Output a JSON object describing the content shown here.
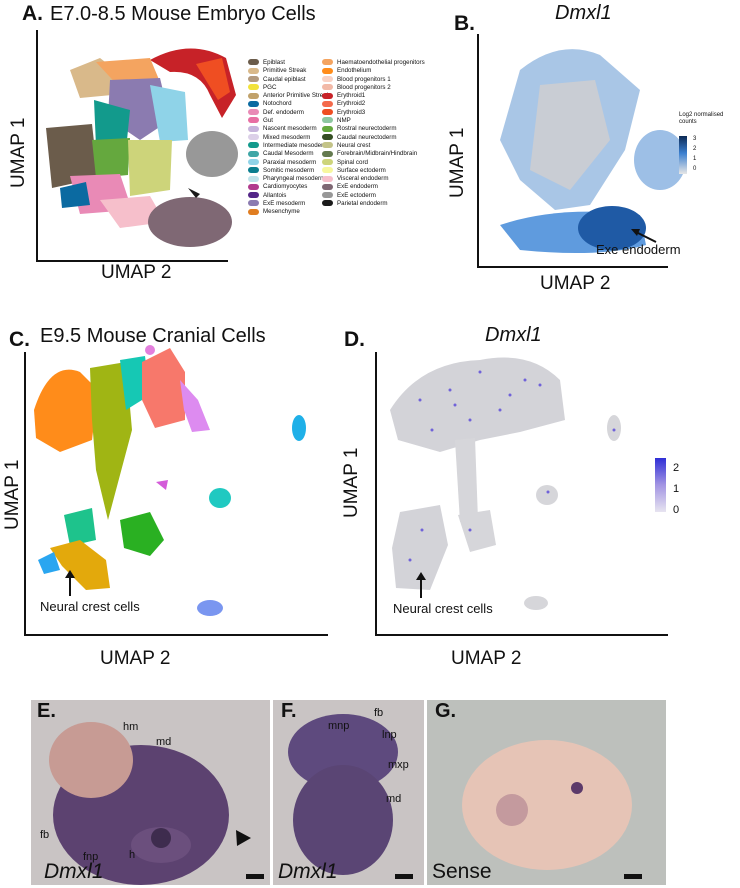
{
  "panels": {
    "A": {
      "letter": "A.",
      "title": "E7.0-8.5 Mouse Embryo Cells",
      "xlabel": "UMAP 2",
      "ylabel": "UMAP 1"
    },
    "B": {
      "letter": "B.",
      "gene": "Dmxl1",
      "xlabel": "UMAP 2",
      "ylabel": "UMAP 1",
      "annotation": "Exe endoderm",
      "colorbar_title": "Log2 normalised counts",
      "ticks": [
        "3",
        "2",
        "1",
        "0"
      ]
    },
    "C": {
      "letter": "C.",
      "title": "E9.5 Mouse Cranial Cells",
      "xlabel": "UMAP 2",
      "ylabel": "UMAP 1",
      "annotation": "Neural crest cells"
    },
    "D": {
      "letter": "D.",
      "gene": "Dmxl1",
      "xlabel": "UMAP 2",
      "ylabel": "UMAP 1",
      "annotation": "Neural crest cells",
      "ticks": [
        "2",
        "1",
        "0"
      ]
    },
    "E": {
      "letter": "E.",
      "gene": "Dmxl1",
      "labels": {
        "hm": "hm",
        "md": "md",
        "fb": "fb",
        "fnp": "fnp",
        "h": "h"
      }
    },
    "F": {
      "letter": "F.",
      "gene": "Dmxl1",
      "labels": {
        "fb": "fb",
        "mnp": "mnp",
        "lnp": "lnp",
        "mxp": "mxp",
        "md": "md"
      }
    },
    "G": {
      "letter": "G.",
      "gene": "Sense"
    }
  },
  "legend": {
    "col1": [
      {
        "label": "Epiblast",
        "color": "#6b5c4b"
      },
      {
        "label": "Primitive Streak",
        "color": "#d9b98a"
      },
      {
        "label": "Caudal epiblast",
        "color": "#b39a7e"
      },
      {
        "label": "PGC",
        "color": "#f2e23a"
      },
      {
        "label": "Anterior Primitive Streak",
        "color": "#c1a26b"
      },
      {
        "label": "Notochord",
        "color": "#0b6aa1"
      },
      {
        "label": "Def. endoderm",
        "color": "#e98ab6"
      },
      {
        "label": "Gut",
        "color": "#e86fa3"
      },
      {
        "label": "Nascent mesoderm",
        "color": "#c7b5dc"
      },
      {
        "label": "Mixed mesoderm",
        "color": "#dcd0e8"
      },
      {
        "label": "Intermediate mesoderm",
        "color": "#129a8c"
      },
      {
        "label": "Caudal Mesoderm",
        "color": "#3fa6a6"
      },
      {
        "label": "Paraxial mesoderm",
        "color": "#8fd3e8"
      },
      {
        "label": "Somitic mesoderm",
        "color": "#0a7e8f"
      },
      {
        "label": "Pharyngeal mesoderm",
        "color": "#bfe3ea"
      },
      {
        "label": "Cardiomyocytes",
        "color": "#b13b8d"
      },
      {
        "label": "Allantois",
        "color": "#542788"
      },
      {
        "label": "ExE mesoderm",
        "color": "#8b7bb0"
      },
      {
        "label": "Mesenchyme",
        "color": "#e07d21"
      }
    ],
    "col2": [
      {
        "label": "Haematoendothelial progenitors",
        "color": "#f4a460"
      },
      {
        "label": "Endothelium",
        "color": "#ff8c1a"
      },
      {
        "label": "Blood progenitors 1",
        "color": "#f9d2c5"
      },
      {
        "label": "Blood progenitors 2",
        "color": "#f2b9a7"
      },
      {
        "label": "Erythroid1",
        "color": "#c72228"
      },
      {
        "label": "Erythroid2",
        "color": "#f46a4c"
      },
      {
        "label": "Erythroid3",
        "color": "#ef4e22"
      },
      {
        "label": "NMP",
        "color": "#8dc7a0"
      },
      {
        "label": "Rostral neurectoderm",
        "color": "#65a83e"
      },
      {
        "label": "Caudal neurectoderm",
        "color": "#354e23"
      },
      {
        "label": "Neural crest",
        "color": "#c3c388"
      },
      {
        "label": "Forebrain/Midbrain/Hindbrain",
        "color": "#647a4f"
      },
      {
        "label": "Spinal cord",
        "color": "#cdd47a"
      },
      {
        "label": "Surface ectoderm",
        "color": "#f7f79e"
      },
      {
        "label": "Visceral endoderm",
        "color": "#f6bfcb"
      },
      {
        "label": "ExE endoderm",
        "color": "#7f6874"
      },
      {
        "label": "ExE ectoderm",
        "color": "#989898"
      },
      {
        "label": "Parietal endoderm",
        "color": "#1a1a1a"
      }
    ]
  },
  "colors": {
    "umapGrey": "#c9c9c9",
    "umapBlue": "#4a90d9",
    "darkBlue": "#0d3c7a",
    "purple": "#6b5bd6",
    "embryo": "#5a3f70"
  }
}
